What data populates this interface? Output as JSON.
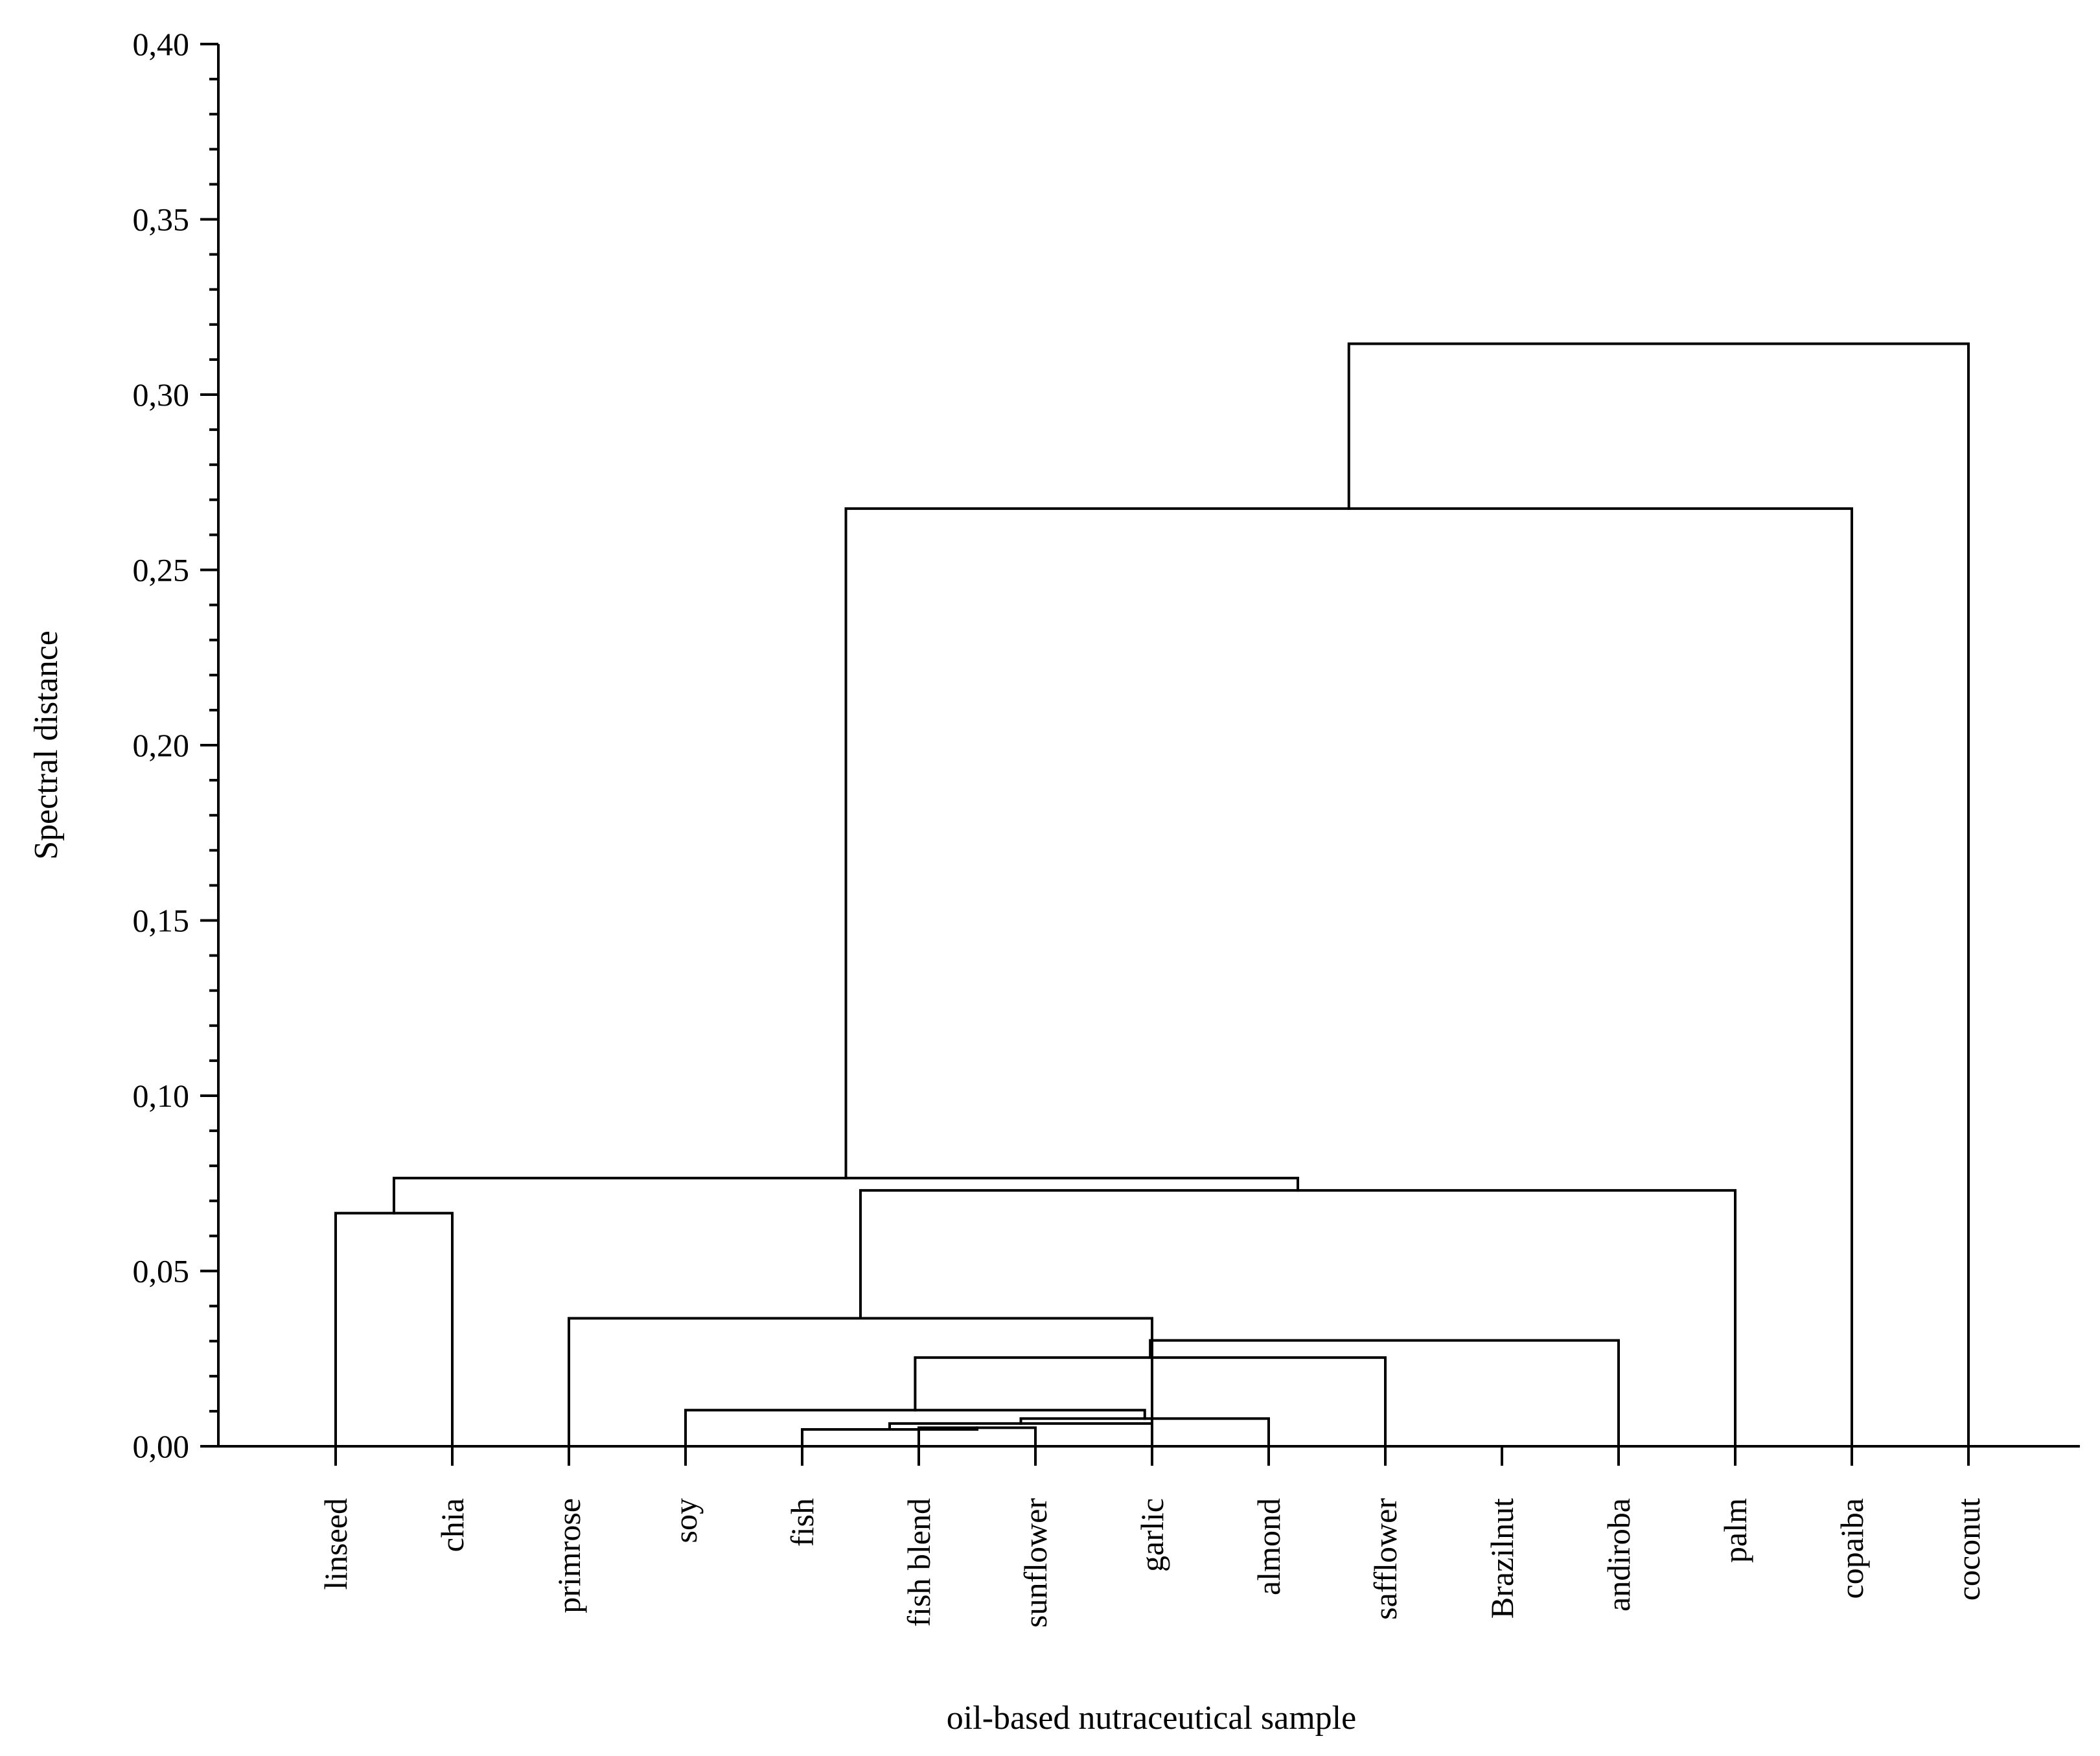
{
  "chart_data": {
    "type": "dendrogram",
    "xlabel": "oil-based nutraceutical sample",
    "ylabel": "Spectral distance",
    "ylim": [
      0,
      0.4
    ],
    "yticks": [
      "0,00",
      "0,05",
      "0,10",
      "0,15",
      "0,20",
      "0,25",
      "0,30",
      "0,35",
      "0,40"
    ],
    "leaves": [
      "linseed",
      "chia",
      "primrose",
      "soy",
      "fish",
      "fish blend",
      "sunflower",
      "garlic",
      "almond",
      "safflower",
      "Brazilnut",
      "andiroba",
      "palm",
      "copaiba",
      "coconut"
    ],
    "merges": [
      {
        "a": "fish blend",
        "b": "sunflower",
        "height": 0.0053
      },
      {
        "a": "fish",
        "b": [
          "fish blend",
          "sunflower"
        ],
        "height": 0.0048
      },
      {
        "a": "garlic",
        "b": [
          "fish",
          "fish blend",
          "sunflower"
        ],
        "height": 0.0065
      },
      {
        "a": "almond",
        "b": [
          "garlic",
          "fish",
          "fish blend",
          "sunflower"
        ],
        "height": 0.0079
      },
      {
        "a": "soy",
        "b": [
          "almond",
          "garlic",
          "fish",
          "fish blend",
          "sunflower"
        ],
        "height": 0.0103
      },
      {
        "a": [
          "soy",
          "almond",
          "garlic",
          "fish",
          "fish blend",
          "sunflower"
        ],
        "b": "safflower",
        "height": 0.0253
      },
      {
        "a": [
          "soy",
          "almond",
          "garlic",
          "fish",
          "fish blend",
          "sunflower",
          "safflower"
        ],
        "b": "andiroba",
        "height": 0.0302
      },
      {
        "a": "primrose",
        "b": [
          "soy",
          "almond",
          "garlic",
          "fish",
          "fish blend",
          "sunflower",
          "safflower",
          "andiroba",
          "Brazilnut"
        ],
        "height": 0.0365
      },
      {
        "a": "linseed",
        "b": "chia",
        "height": 0.0665
      },
      {
        "a": [
          "primrose",
          "soy",
          "almond",
          "garlic",
          "fish",
          "fish blend",
          "sunflower",
          "safflower",
          "andiroba",
          "Brazilnut"
        ],
        "b": "palm",
        "height": 0.073
      },
      {
        "a": [
          "linseed",
          "chia"
        ],
        "b": [
          "primrose",
          "soy",
          "almond",
          "garlic",
          "fish",
          "fish blend",
          "sunflower",
          "safflower",
          "andiroba",
          "Brazilnut",
          "palm"
        ],
        "height": 0.0765
      },
      {
        "a": [
          "linseed",
          "chia",
          "primrose",
          "soy",
          "almond",
          "garlic",
          "fish",
          "fish blend",
          "sunflower",
          "safflower",
          "andiroba",
          "Brazilnut",
          "palm"
        ],
        "b": "copaiba",
        "height": 0.2675
      },
      {
        "a": [
          "linseed",
          "chia",
          "primrose",
          "soy",
          "almond",
          "garlic",
          "fish",
          "fish blend",
          "sunflower",
          "safflower",
          "andiroba",
          "Brazilnut",
          "palm",
          "copaiba"
        ],
        "b": "coconut",
        "height": 0.3145
      }
    ]
  }
}
